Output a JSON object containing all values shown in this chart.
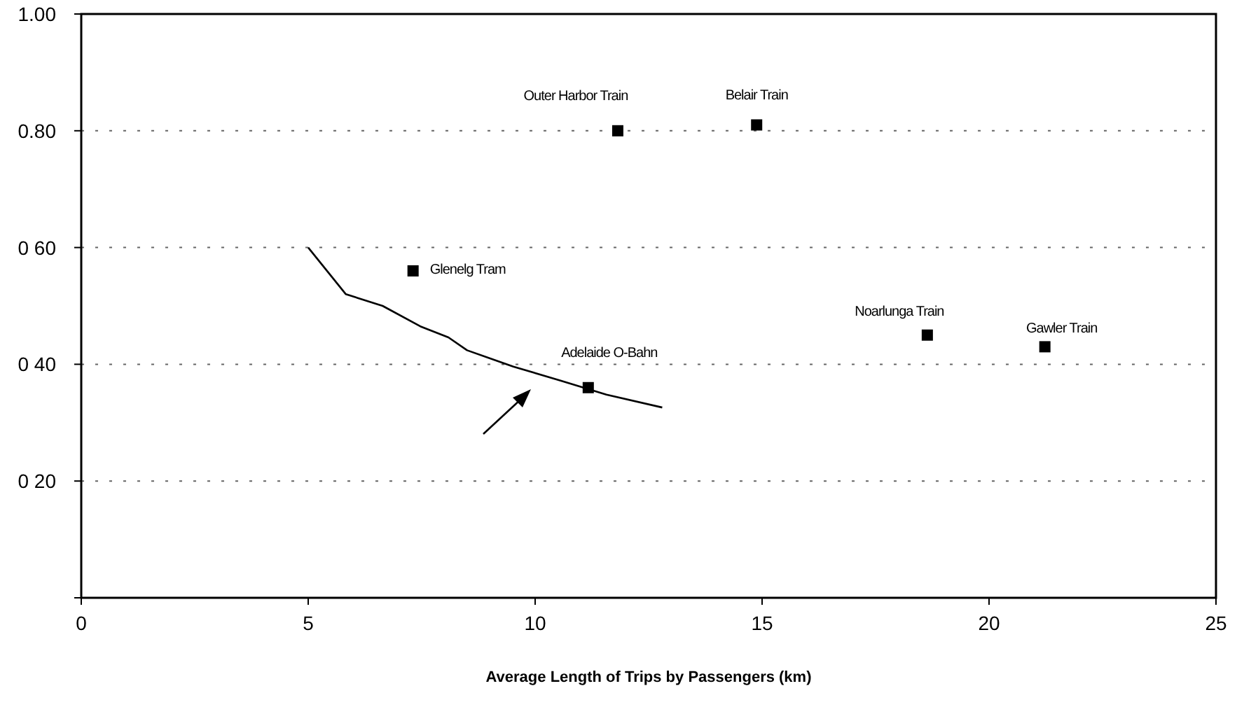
{
  "chart_data": {
    "type": "scatter",
    "xlabel": "Average Length of Trips by Passengers (km)",
    "xlim": [
      0,
      25
    ],
    "xticks": [
      0,
      5,
      10,
      15,
      20,
      25
    ],
    "ylim": [
      0,
      1
    ],
    "yticks": [
      {
        "value": 0,
        "label": null
      },
      {
        "value": 0.2,
        "label": "0 20"
      },
      {
        "value": 0.4,
        "label": "0 40"
      },
      {
        "value": 0.6,
        "label": "0 60"
      },
      {
        "value": 0.8,
        "label": "0.80"
      },
      {
        "value": 1,
        "label": "1.00"
      }
    ],
    "grid": "y",
    "marker": "square",
    "series": [
      {
        "name": "Outer Harbor Train",
        "color": "#000000",
        "x": [
          11.82
        ],
        "values": [
          0.8
        ]
      },
      {
        "name": "Belair Train",
        "color": "#000000",
        "x": [
          14.88
        ],
        "values": [
          0.81
        ]
      },
      {
        "name": "Glenelg Tram",
        "color": "#000000",
        "x": [
          7.31
        ],
        "values": [
          0.56
        ]
      },
      {
        "name": "Adelaide O-Bahn",
        "color": "#000000",
        "x": [
          11.17
        ],
        "values": [
          0.36
        ]
      },
      {
        "name": "Noarlunga Train",
        "color": "#000000",
        "x": [
          18.64
        ],
        "values": [
          0.45
        ]
      },
      {
        "name": "Gawler Train",
        "color": "#000000",
        "x": [
          21.23
        ],
        "values": [
          0.43
        ]
      },
      {
        "type": "line",
        "color": "#000000",
        "line_style": "solid",
        "marker": "none",
        "x": [
          5,
          5.83,
          6.64,
          7.47,
          8.09,
          8.5,
          9.52,
          10.56,
          11.57,
          12.8
        ],
        "values": [
          0.6,
          0.52,
          0.5,
          0.465,
          0.446,
          0.424,
          0.396,
          0.372,
          0.348,
          0.326
        ]
      }
    ]
  }
}
